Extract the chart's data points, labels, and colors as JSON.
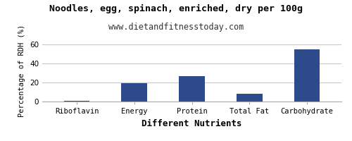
{
  "title": "Noodles, egg, spinach, enriched, dry per 100g",
  "subtitle": "www.dietandfitnesstoday.com",
  "xlabel": "Different Nutrients",
  "ylabel": "Percentage of RDH (%)",
  "categories": [
    "Riboflavin",
    "Energy",
    "Protein",
    "Total Fat",
    "Carbohydrate"
  ],
  "values": [
    0.5,
    19.5,
    26.5,
    8.0,
    54.5
  ],
  "bar_color": "#2d4a8a",
  "ylim": [
    0,
    65
  ],
  "yticks": [
    0,
    20,
    40,
    60
  ],
  "background_color": "#ffffff",
  "grid_color": "#c8c8c8",
  "title_fontsize": 9.5,
  "subtitle_fontsize": 8.5,
  "xlabel_fontsize": 9,
  "ylabel_fontsize": 7.5,
  "tick_fontsize": 7.5,
  "bar_width": 0.45
}
